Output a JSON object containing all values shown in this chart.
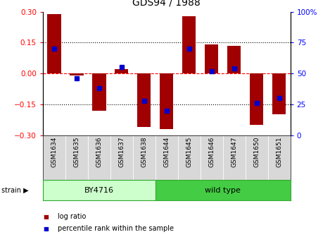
{
  "title": "GDS94 / 1988",
  "samples": [
    "GSM1634",
    "GSM1635",
    "GSM1636",
    "GSM1637",
    "GSM1638",
    "GSM1644",
    "GSM1645",
    "GSM1646",
    "GSM1647",
    "GSM1650",
    "GSM1651"
  ],
  "log_ratio": [
    0.29,
    -0.01,
    -0.18,
    0.02,
    -0.26,
    -0.27,
    0.28,
    0.14,
    0.135,
    -0.25,
    -0.2
  ],
  "percentile": [
    70,
    46,
    38,
    55,
    28,
    20,
    70,
    52,
    54,
    26,
    30
  ],
  "bar_color": "#a00000",
  "dot_color": "#0000cc",
  "ylim_left": [
    -0.3,
    0.3
  ],
  "ylim_right": [
    0,
    100
  ],
  "yticks_left": [
    -0.3,
    -0.15,
    0,
    0.15,
    0.3
  ],
  "yticks_right": [
    0,
    25,
    50,
    75,
    100
  ],
  "ytick_labels_right": [
    "0",
    "25",
    "50",
    "75",
    "100%"
  ],
  "dotted_lines": [
    -0.15,
    0.15
  ],
  "strain_bg_light": "#ccffcc",
  "strain_bg_dark": "#44cc44",
  "bar_width": 0.6,
  "title_fontsize": 10,
  "label_fontsize": 6.5,
  "strain_fontsize": 8,
  "legend_fontsize": 7,
  "ytick_fontsize": 7.5
}
